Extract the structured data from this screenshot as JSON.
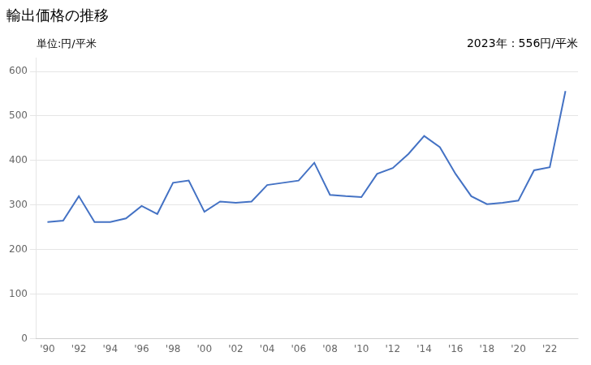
{
  "chart_data": {
    "type": "line",
    "title": "輸出価格の推移",
    "ylabel": "単位:円/平米",
    "annotation": "2023年：556円/平米",
    "x": [
      1990,
      1991,
      1992,
      1993,
      1994,
      1995,
      1996,
      1997,
      1998,
      1999,
      2000,
      2001,
      2002,
      2003,
      2004,
      2005,
      2006,
      2007,
      2008,
      2009,
      2010,
      2011,
      2012,
      2013,
      2014,
      2015,
      2016,
      2017,
      2018,
      2019,
      2020,
      2021,
      2022,
      2023
    ],
    "values": [
      262,
      265,
      320,
      262,
      262,
      270,
      298,
      280,
      350,
      355,
      285,
      308,
      305,
      308,
      345,
      350,
      355,
      395,
      323,
      320,
      318,
      370,
      383,
      415,
      455,
      430,
      370,
      320,
      302,
      305,
      310,
      378,
      385,
      556
    ],
    "color": "#4472C4",
    "xlim": [
      1989.3,
      2023.8
    ],
    "xticks": [
      {
        "value": 1990,
        "label": "'90"
      },
      {
        "value": 1992,
        "label": "'92"
      },
      {
        "value": 1994,
        "label": "'94"
      },
      {
        "value": 1996,
        "label": "'96"
      },
      {
        "value": 1998,
        "label": "'98"
      },
      {
        "value": 2000,
        "label": "'00"
      },
      {
        "value": 2002,
        "label": "'02"
      },
      {
        "value": 2004,
        "label": "'04"
      },
      {
        "value": 2006,
        "label": "'06"
      },
      {
        "value": 2008,
        "label": "'08"
      },
      {
        "value": 2010,
        "label": "'10"
      },
      {
        "value": 2012,
        "label": "'12"
      },
      {
        "value": 2014,
        "label": "'14"
      },
      {
        "value": 2016,
        "label": "'16"
      },
      {
        "value": 2018,
        "label": "'18"
      },
      {
        "value": 2020,
        "label": "'20"
      },
      {
        "value": 2022,
        "label": "'22"
      }
    ],
    "ylim": [
      0,
      630
    ],
    "yticks": [
      0,
      100,
      200,
      300,
      400,
      500,
      600
    ],
    "grid": "y"
  }
}
